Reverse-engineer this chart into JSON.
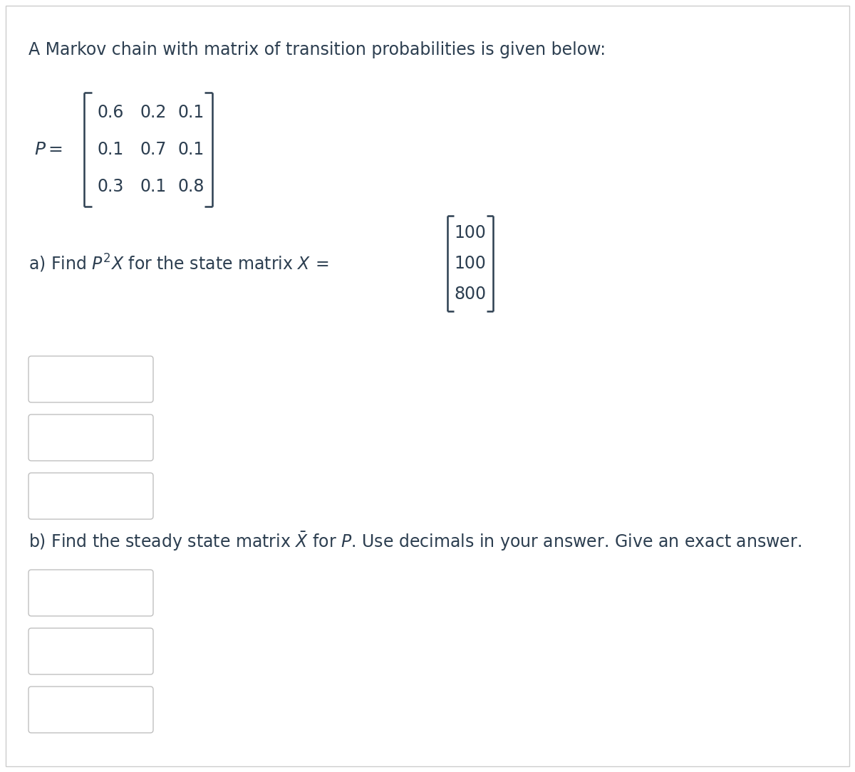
{
  "background_color": "#ffffff",
  "border_color": "#cccccc",
  "title_text": "A Markov chain with matrix of transition probabilities is given below:",
  "text_color": "#2c3e50",
  "matrix_rows": [
    [
      "0.6",
      "0.2",
      "0.1"
    ],
    [
      "0.1",
      "0.7",
      "0.1"
    ],
    [
      "0.3",
      "0.1",
      "0.8"
    ]
  ],
  "state_matrix": [
    "100",
    "100",
    "800"
  ],
  "box_edge_color": "#c0c0c0",
  "box_fill_color": "#ffffff",
  "font_size_main": 17,
  "font_size_matrix": 17,
  "lw_bracket": 1.8
}
